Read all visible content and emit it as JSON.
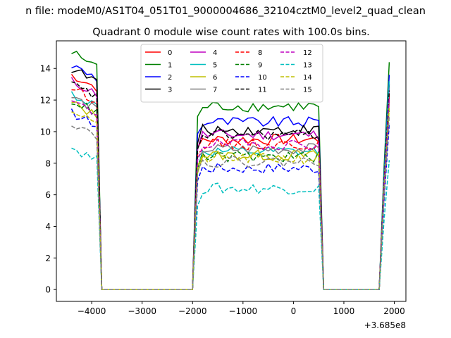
{
  "figure": {
    "suptitle": "n file: modeM0/AS1T04_051T01_9000004686_32104cztM0_level2_quad_clean"
  },
  "chart_data": {
    "type": "line",
    "title": "Quadrant 0 module wise count rates with 100.0s bins.",
    "xlabel": "",
    "ylabel": "",
    "x_offset_label": "+3.685e8",
    "xlim": [
      -4700,
      2230
    ],
    "ylim": [
      -0.75,
      15.75
    ],
    "xticks": [
      -4000,
      -3000,
      -2000,
      -1000,
      0,
      1000,
      2000
    ],
    "xtick_labels": [
      "−4000",
      "−3000",
      "−2000",
      "−1000",
      "0",
      "1000",
      "2000"
    ],
    "yticks": [
      0,
      2,
      4,
      6,
      8,
      10,
      12,
      14
    ],
    "ytick_labels": [
      "0",
      "2",
      "4",
      "6",
      "8",
      "10",
      "12",
      "14"
    ],
    "grid": false,
    "legend": {
      "position": "top-center",
      "ncol": 4
    },
    "segments": [
      {
        "start": -4400,
        "end": -3900,
        "step": 100,
        "drop_to": -3800
      },
      {
        "start": -2000,
        "end": 500,
        "step": 100,
        "drop_from": -1900,
        "drop_to": 600
      },
      {
        "start": 1700,
        "end": 1900,
        "step": 100,
        "drop_from": 1700
      }
    ],
    "series": [
      {
        "name": "0",
        "color": "#ff0000",
        "dash": "solid",
        "level1": 13.6,
        "level2": 9.5,
        "level3": 12.2
      },
      {
        "name": "1",
        "color": "#008000",
        "dash": "solid",
        "level1": 15.0,
        "level2": 11.6,
        "level3": 14.4
      },
      {
        "name": "2",
        "color": "#0000ff",
        "dash": "solid",
        "level1": 14.2,
        "level2": 10.6,
        "level3": 13.6
      },
      {
        "name": "3",
        "color": "#000000",
        "dash": "solid",
        "level1": 14.0,
        "level2": 10.1,
        "level3": 13.0
      },
      {
        "name": "4",
        "color": "#bf00bf",
        "dash": "solid",
        "level1": 13.2,
        "level2": 9.8,
        "level3": 12.8
      },
      {
        "name": "5",
        "color": "#00bfbf",
        "dash": "solid",
        "level1": 12.4,
        "level2": 8.7,
        "level3": 13.2
      },
      {
        "name": "6",
        "color": "#bfbf00",
        "dash": "solid",
        "level1": 11.8,
        "level2": 8.5,
        "level3": 11.9
      },
      {
        "name": "7",
        "color": "#808080",
        "dash": "solid",
        "level1": 12.2,
        "level2": 8.9,
        "level3": 12.0
      },
      {
        "name": "8",
        "color": "#ff0000",
        "dash": "dashed",
        "level1": 12.8,
        "level2": 9.2,
        "level3": 12.4
      },
      {
        "name": "9",
        "color": "#008000",
        "dash": "dashed",
        "level1": 12.0,
        "level2": 8.4,
        "level3": 11.6
      },
      {
        "name": "10",
        "color": "#0000ff",
        "dash": "dashed",
        "level1": 11.2,
        "level2": 7.7,
        "level3": 10.5
      },
      {
        "name": "11",
        "color": "#000000",
        "dash": "dashed",
        "level1": 13.0,
        "level2": 9.8,
        "level3": 12.6
      },
      {
        "name": "12",
        "color": "#bf00bf",
        "dash": "dashed",
        "level1": 11.9,
        "level2": 9.2,
        "level3": 12.1
      },
      {
        "name": "13",
        "color": "#00bfbf",
        "dash": "dashed",
        "level1": 9.0,
        "level2": 6.4,
        "level3": 8.2
      },
      {
        "name": "14",
        "color": "#bfbf00",
        "dash": "dashed",
        "level1": 11.4,
        "level2": 8.3,
        "level3": 11.5
      },
      {
        "name": "15",
        "color": "#808080",
        "dash": "dashed",
        "level1": 10.6,
        "level2": 8.1,
        "level3": 11.0
      }
    ]
  }
}
